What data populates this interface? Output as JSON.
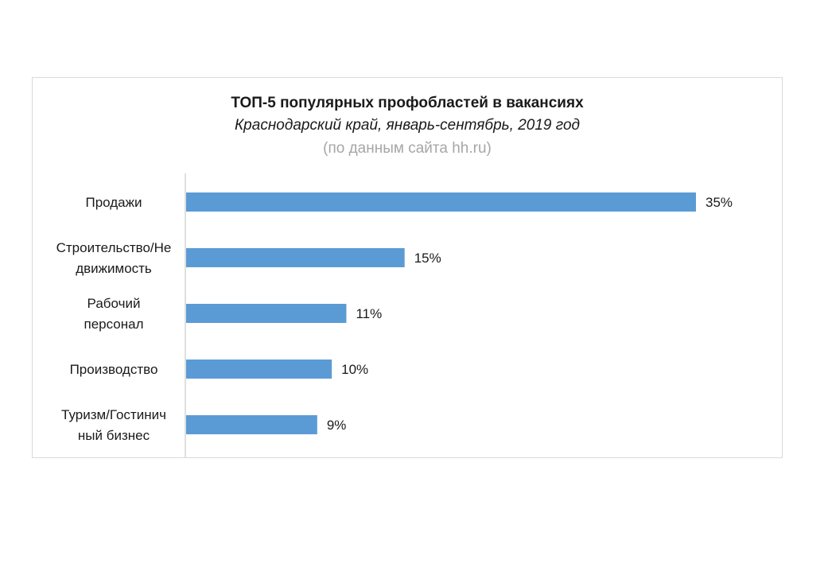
{
  "chart_data": {
    "type": "bar",
    "orientation": "horizontal",
    "title": "ТОП-5 популярных профобластей в вакансиях",
    "subtitle": "Краснодарский край, январь-сентябрь, 2019 год",
    "source_note": "(по данным сайта hh.ru)",
    "categories": [
      [
        "Продажи"
      ],
      [
        "Строительство/Не",
        "движимость"
      ],
      [
        "Рабочий",
        "персонал"
      ],
      [
        "Производство"
      ],
      [
        "Туризм/Гостинич",
        "ный бизнес"
      ]
    ],
    "values": [
      35,
      15,
      11,
      10,
      9
    ],
    "value_labels": [
      "35%",
      "15%",
      "11%",
      "10%",
      "9%"
    ],
    "unit": "%",
    "xlim": [
      0,
      35
    ],
    "grid": false,
    "legend": "none",
    "bar_color": "#5b9bd5"
  }
}
